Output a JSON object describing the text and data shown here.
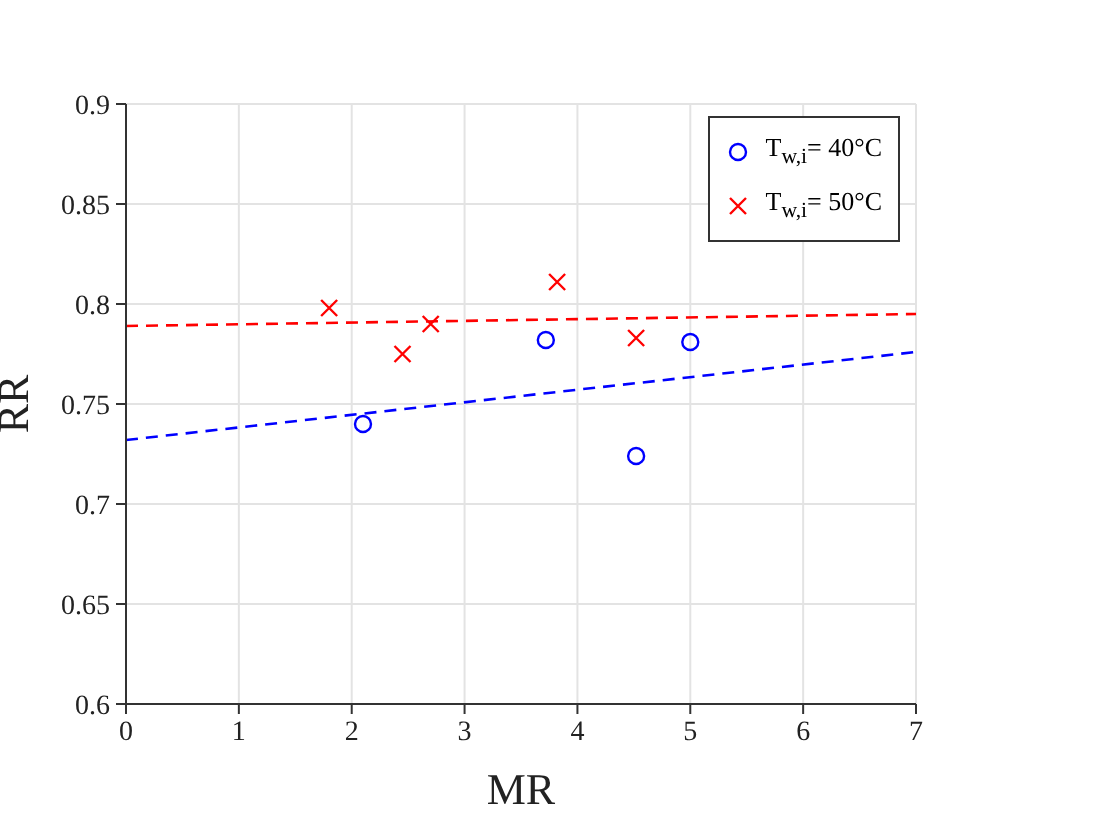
{
  "chart_data": {
    "type": "scatter",
    "xlabel": "MR",
    "ylabel": "RR",
    "xlim": [
      0,
      7
    ],
    "xticks": [
      0,
      1,
      2,
      3,
      4,
      5,
      6,
      7
    ],
    "ylim": [
      0.6,
      0.9
    ],
    "yticks": [
      0.6,
      0.65,
      0.7,
      0.75,
      0.8,
      0.85,
      0.9
    ],
    "grid": true,
    "legend": "top right",
    "series": [
      {
        "name": "T$_{w,i}$= 40°C",
        "marker": "circle",
        "color": "#0000ff",
        "x": [
          2.1,
          3.72,
          4.52,
          5.0
        ],
        "values": [
          0.74,
          0.782,
          0.724,
          0.781
        ]
      },
      {
        "name": "T$_{w,i}$= 50°C",
        "marker": "cross",
        "color": "#ff0000",
        "x": [
          1.8,
          2.45,
          2.7,
          3.82,
          4.52
        ],
        "values": [
          0.798,
          0.775,
          0.79,
          0.811,
          0.783
        ]
      },
      {
        "type": "line",
        "line_style": "dashed",
        "marker": "none",
        "color": "#0000ff",
        "x": [
          0,
          7
        ],
        "values": [
          0.732,
          0.776
        ]
      },
      {
        "type": "line",
        "line_style": "dashed",
        "marker": "none",
        "color": "#ff0000",
        "x": [
          0,
          7
        ],
        "values": [
          0.789,
          0.795
        ]
      }
    ]
  }
}
